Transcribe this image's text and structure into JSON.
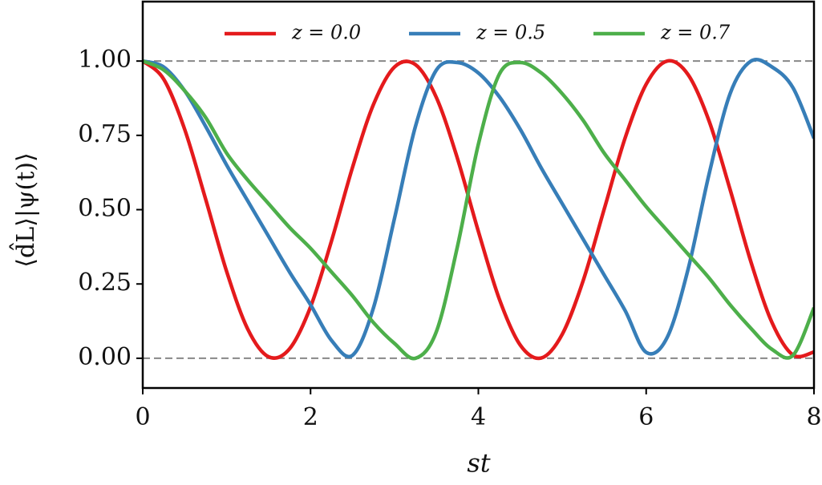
{
  "chart_data": {
    "type": "line",
    "x_label": "st",
    "y_label": "⟨d̂L⟩|ψ(t)⟩",
    "x": [
      0,
      0.25,
      0.5,
      0.75,
      1,
      1.25,
      1.5,
      1.75,
      2,
      2.25,
      2.5,
      2.75,
      3,
      3.25,
      3.5,
      3.75,
      4,
      4.25,
      4.5,
      4.75,
      5,
      5.25,
      5.5,
      5.75,
      6,
      6.25,
      6.5,
      6.75,
      7,
      7.25,
      7.5,
      7.75,
      8
    ],
    "series": [
      {
        "name": "z = 0.0",
        "color": "#e41a1c",
        "values": [
          1,
          0.939,
          0.77,
          0.535,
          0.292,
          0.099,
          0.005,
          0.032,
          0.173,
          0.395,
          0.642,
          0.854,
          0.98,
          0.988,
          0.877,
          0.673,
          0.427,
          0.199,
          0.044,
          0.001,
          0.081,
          0.262,
          0.502,
          0.742,
          0.922,
          1.0,
          0.954,
          0.798,
          0.568,
          0.323,
          0.12,
          0.011,
          0.021
        ]
      },
      {
        "name": "z = 0.5",
        "color": "#377eb8",
        "values": [
          1,
          0.98,
          0.9,
          0.78,
          0.65,
          0.53,
          0.41,
          0.29,
          0.18,
          0.06,
          0.01,
          0.17,
          0.47,
          0.78,
          0.97,
          0.995,
          0.96,
          0.88,
          0.77,
          0.64,
          0.52,
          0.4,
          0.28,
          0.16,
          0.02,
          0.07,
          0.3,
          0.62,
          0.89,
          1.0,
          0.98,
          0.91,
          0.74
        ]
      },
      {
        "name": "z = 0.7",
        "color": "#4daf4a",
        "values": [
          1,
          0.97,
          0.9,
          0.81,
          0.69,
          0.6,
          0.52,
          0.44,
          0.37,
          0.29,
          0.21,
          0.12,
          0.05,
          0.0,
          0.09,
          0.375,
          0.72,
          0.956,
          0.995,
          0.96,
          0.89,
          0.8,
          0.69,
          0.6,
          0.51,
          0.43,
          0.35,
          0.27,
          0.18,
          0.1,
          0.03,
          0.01,
          0.17
        ]
      }
    ],
    "xlim": [
      0,
      8
    ],
    "ylim": [
      -0.1,
      1.2
    ],
    "xticks": [
      0,
      2,
      4,
      6,
      8
    ],
    "yticks": [
      {
        "value": 0,
        "label": "0.00"
      },
      {
        "value": 0.25,
        "label": "0.25"
      },
      {
        "value": 0.5,
        "label": "0.50"
      },
      {
        "value": 0.75,
        "label": "0.75"
      },
      {
        "value": 1,
        "label": "1.00"
      }
    ],
    "hlines": [
      0,
      1
    ],
    "legend": "upper center",
    "grid": false
  }
}
